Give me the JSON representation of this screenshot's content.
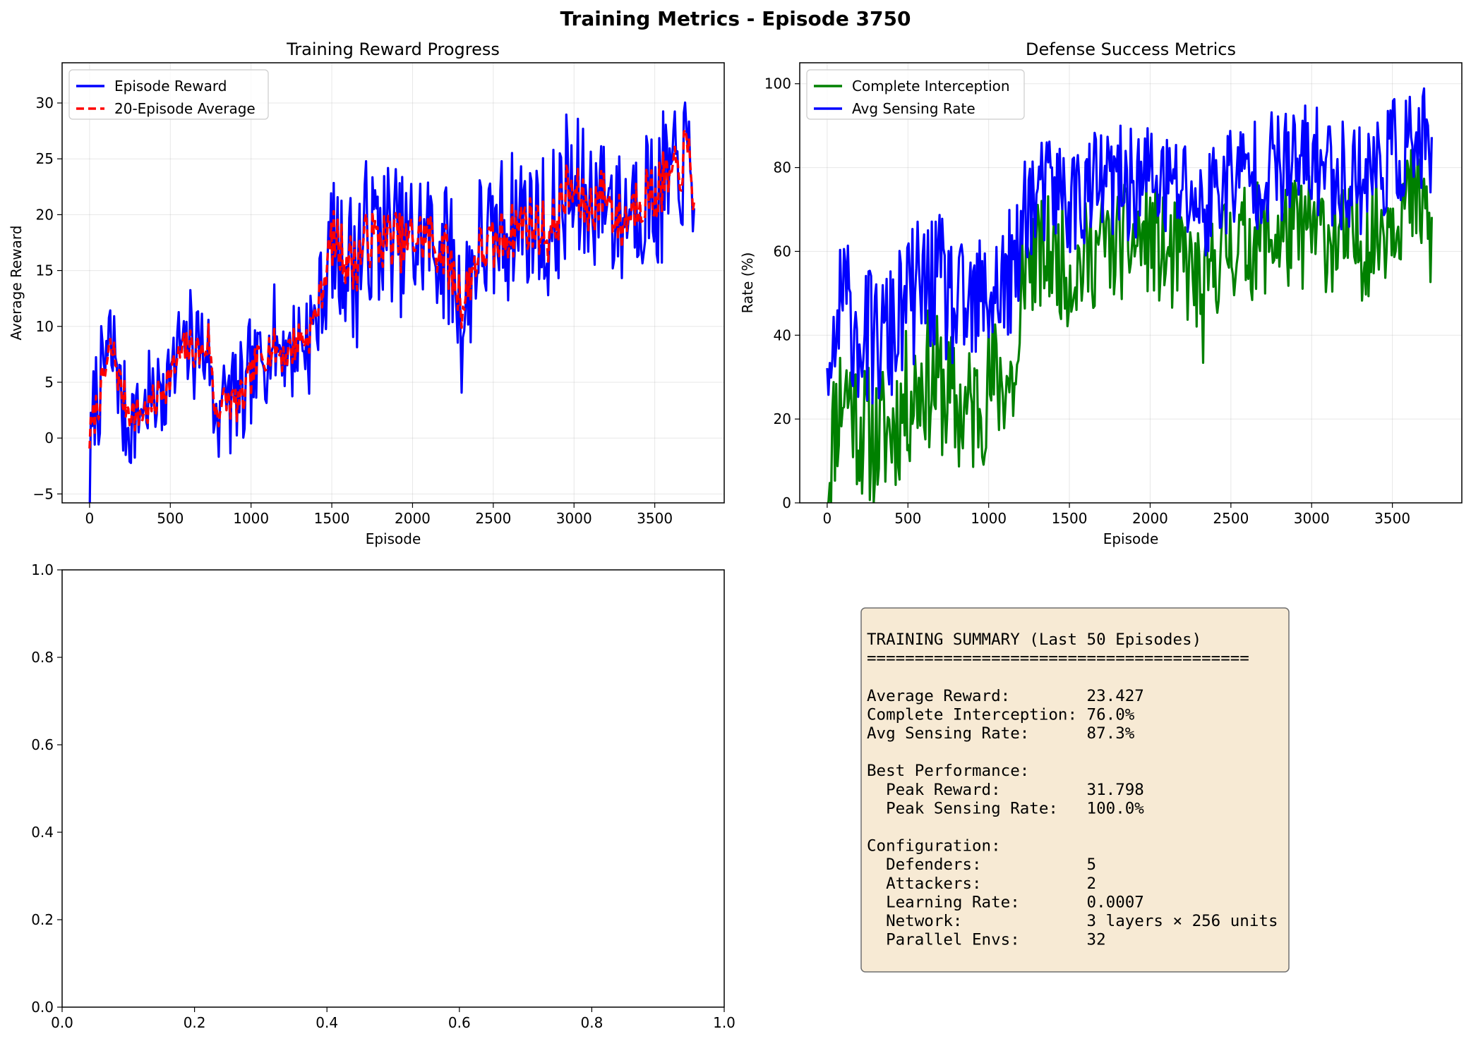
{
  "figure": {
    "title": "Training Metrics - Episode 3750"
  },
  "chart_data": [
    {
      "type": "line",
      "title": "Training Reward Progress",
      "xlabel": "Episode",
      "ylabel": "Average Reward",
      "xlim": [
        -170,
        3930
      ],
      "ylim": [
        -5.8,
        33.6
      ],
      "xticks": [
        0,
        500,
        1000,
        1500,
        2000,
        2500,
        3000,
        3500
      ],
      "xtick_labels": [
        "0",
        "500",
        "1000",
        "1500",
        "2000",
        "2500",
        "3000",
        "3500"
      ],
      "yticks": [
        -5,
        0,
        5,
        10,
        15,
        20,
        25,
        30
      ],
      "ytick_labels": [
        "−5",
        "0",
        "5",
        "10",
        "15",
        "20",
        "25",
        "30"
      ],
      "grid": true,
      "legend_position": "top-left",
      "noise_seed": 7,
      "series": [
        {
          "name": "Episode Reward",
          "color": "#0000ff",
          "style": "solid",
          "x": [
            0,
            30,
            60,
            100,
            130,
            160,
            200,
            250,
            300,
            350,
            400,
            450,
            500,
            550,
            600,
            650,
            700,
            740,
            770,
            800,
            850,
            900,
            950,
            1000,
            1050,
            1100,
            1150,
            1200,
            1250,
            1300,
            1350,
            1400,
            1450,
            1500,
            1550,
            1600,
            1650,
            1700,
            1750,
            1800,
            1850,
            1900,
            1950,
            2000,
            2050,
            2100,
            2150,
            2200,
            2250,
            2300,
            2320,
            2350,
            2400,
            2450,
            2500,
            2550,
            2600,
            2650,
            2700,
            2750,
            2800,
            2850,
            2900,
            2950,
            3000,
            3050,
            3100,
            3150,
            3200,
            3250,
            3300,
            3350,
            3400,
            3450,
            3500,
            3550,
            3600,
            3650,
            3700,
            3750
          ],
          "y": [
            -4.0,
            2.0,
            4.0,
            7.0,
            8.0,
            7.0,
            3.0,
            2.0,
            2.5,
            3.0,
            3.0,
            5.0,
            6.0,
            7.0,
            8.0,
            9.0,
            8.0,
            8.0,
            2.0,
            3.0,
            4.0,
            3.0,
            3.0,
            6.0,
            7.0,
            8.0,
            9.0,
            8.0,
            8.0,
            9.0,
            9.0,
            11.0,
            14.0,
            18.0,
            17.0,
            16.0,
            15.0,
            18.0,
            18.0,
            18.0,
            18.0,
            18.0,
            17.0,
            18.0,
            18.0,
            18.0,
            17.0,
            17.0,
            15.0,
            12.0,
            11.0,
            14.0,
            17.0,
            17.0,
            17.0,
            18.0,
            19.0,
            19.0,
            20.0,
            19.0,
            19.0,
            18.0,
            20.0,
            22.0,
            22.0,
            21.0,
            21.0,
            22.0,
            22.0,
            21.0,
            20.0,
            21.0,
            22.0,
            22.0,
            22.0,
            23.0,
            23.0,
            24.0,
            25.0,
            22.0
          ]
        },
        {
          "name": "20-Episode Average",
          "color": "#ff0000",
          "style": "dashed",
          "x": [
            0,
            30,
            60,
            100,
            130,
            160,
            200,
            250,
            300,
            350,
            400,
            450,
            500,
            550,
            600,
            650,
            700,
            740,
            770,
            800,
            850,
            900,
            950,
            1000,
            1050,
            1100,
            1150,
            1200,
            1250,
            1300,
            1350,
            1400,
            1450,
            1500,
            1550,
            1600,
            1650,
            1700,
            1750,
            1800,
            1850,
            1900,
            1950,
            2000,
            2050,
            2100,
            2150,
            2200,
            2250,
            2300,
            2320,
            2350,
            2400,
            2450,
            2500,
            2550,
            2600,
            2650,
            2700,
            2750,
            2800,
            2850,
            2900,
            2950,
            3000,
            3050,
            3100,
            3150,
            3200,
            3250,
            3300,
            3350,
            3400,
            3450,
            3500,
            3550,
            3600,
            3650,
            3700,
            3750
          ],
          "y": [
            0.0,
            2.0,
            3.5,
            6.0,
            8.0,
            7.0,
            4.0,
            2.5,
            2.0,
            2.5,
            3.0,
            4.5,
            5.5,
            7.0,
            8.0,
            8.0,
            7.5,
            9.0,
            3.0,
            2.5,
            3.5,
            3.0,
            3.5,
            5.5,
            7.0,
            8.0,
            8.0,
            7.5,
            8.0,
            9.0,
            9.0,
            11.0,
            14.0,
            18.0,
            17.0,
            16.0,
            15.5,
            17.5,
            18.0,
            17.5,
            18.0,
            18.0,
            17.0,
            18.0,
            18.0,
            18.0,
            17.0,
            17.0,
            14.5,
            12.5,
            12.0,
            14.0,
            16.5,
            17.0,
            17.0,
            18.0,
            18.5,
            19.0,
            19.5,
            19.0,
            19.0,
            18.0,
            20.0,
            22.0,
            22.0,
            21.0,
            20.5,
            21.5,
            22.0,
            20.0,
            19.0,
            20.5,
            21.5,
            22.0,
            21.5,
            23.0,
            23.0,
            24.0,
            26.0,
            21.0
          ]
        }
      ]
    },
    {
      "type": "line",
      "title": "Defense Success Metrics",
      "xlabel": "Episode",
      "ylabel": "Rate (%)",
      "xlim": [
        -170,
        3930
      ],
      "ylim": [
        0,
        105
      ],
      "xticks": [
        0,
        500,
        1000,
        1500,
        2000,
        2500,
        3000,
        3500
      ],
      "xtick_labels": [
        "0",
        "500",
        "1000",
        "1500",
        "2000",
        "2500",
        "3000",
        "3500"
      ],
      "yticks": [
        0,
        20,
        40,
        60,
        80,
        100
      ],
      "ytick_labels": [
        "0",
        "20",
        "40",
        "60",
        "80",
        "100"
      ],
      "grid": true,
      "legend_position": "top-left",
      "noise_seed": 11,
      "series": [
        {
          "name": "Complete Interception",
          "color": "#008000",
          "style": "solid",
          "x": [
            0,
            50,
            100,
            150,
            200,
            300,
            400,
            500,
            600,
            700,
            800,
            900,
            1000,
            1100,
            1190,
            1210,
            1300,
            1400,
            1500,
            1600,
            1700,
            1800,
            1900,
            2000,
            2100,
            2200,
            2300,
            2320,
            2400,
            2500,
            2600,
            2700,
            2800,
            2900,
            3000,
            3100,
            3200,
            3300,
            3400,
            3500,
            3600,
            3700,
            3750
          ],
          "y": [
            5,
            20,
            28,
            25,
            18,
            15,
            18,
            25,
            30,
            28,
            22,
            22,
            28,
            30,
            28,
            58,
            58,
            60,
            55,
            58,
            62,
            62,
            62,
            64,
            58,
            58,
            52,
            45,
            58,
            62,
            62,
            63,
            64,
            64,
            65,
            64,
            62,
            62,
            64,
            70,
            72,
            70,
            60
          ]
        },
        {
          "name": "Avg Sensing Rate",
          "color": "#0000ff",
          "style": "solid",
          "x": [
            0,
            50,
            100,
            150,
            200,
            300,
            400,
            500,
            600,
            700,
            800,
            900,
            1000,
            1100,
            1190,
            1210,
            1300,
            1400,
            1500,
            1600,
            1700,
            1800,
            1900,
            2000,
            2100,
            2200,
            2300,
            2320,
            2400,
            2500,
            2600,
            2700,
            2800,
            2900,
            3000,
            3100,
            3200,
            3300,
            3400,
            3500,
            3600,
            3700,
            3750
          ],
          "y": [
            25,
            40,
            48,
            45,
            40,
            38,
            40,
            48,
            52,
            52,
            45,
            45,
            50,
            52,
            55,
            72,
            72,
            75,
            72,
            74,
            76,
            76,
            76,
            78,
            75,
            75,
            72,
            68,
            75,
            78,
            78,
            80,
            80,
            80,
            82,
            80,
            78,
            78,
            80,
            83,
            85,
            85,
            80
          ]
        }
      ]
    },
    {
      "type": "line",
      "title": "",
      "xlabel": "",
      "ylabel": "",
      "xlim": [
        0,
        1
      ],
      "ylim": [
        0,
        1
      ],
      "xticks": [
        0.0,
        0.2,
        0.4,
        0.6,
        0.8,
        1.0
      ],
      "xtick_labels": [
        "0.0",
        "0.2",
        "0.4",
        "0.6",
        "0.8",
        "1.0"
      ],
      "yticks": [
        0.0,
        0.2,
        0.4,
        0.6,
        0.8,
        1.0
      ],
      "ytick_labels": [
        "0.0",
        "0.2",
        "0.4",
        "0.6",
        "0.8",
        "1.0"
      ],
      "grid": false,
      "series": []
    }
  ],
  "summary": {
    "lines": [
      "TRAINING SUMMARY (Last 50 Episodes)",
      "========================================",
      "",
      "Average Reward:        23.427",
      "Complete Interception: 76.0%",
      "Avg Sensing Rate:      87.3%",
      "",
      "Best Performance:",
      "  Peak Reward:         31.798",
      "  Peak Sensing Rate:   100.0%",
      "",
      "Configuration:",
      "  Defenders:           5",
      "  Attackers:           2",
      "  Learning Rate:       0.0007",
      "  Network:             3 layers × 256 units",
      "  Parallel Envs:       32"
    ],
    "box_fill": "#f7ead4",
    "box_edge": "#6e6e6e"
  }
}
